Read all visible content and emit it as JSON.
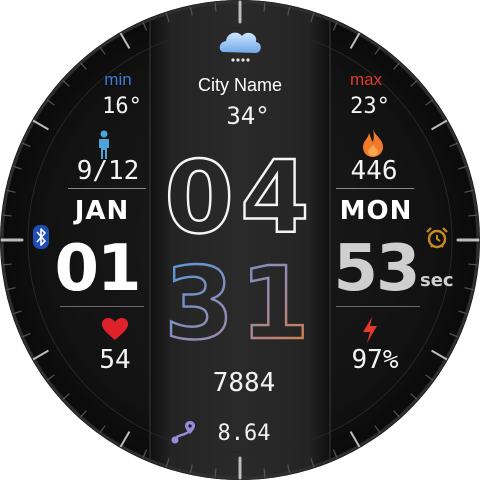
{
  "weather": {
    "icon": "cloud-icon",
    "city": "City Name",
    "temp": "34°",
    "min_label": "min",
    "min_value": "16°",
    "max_label": "max",
    "max_value": "23°"
  },
  "time": {
    "hours": "04",
    "minutes": "31",
    "seconds": "53",
    "seconds_unit": "sec"
  },
  "date": {
    "month": "JAN",
    "day": "01",
    "weekday": "MON"
  },
  "steps": {
    "icon": "person-icon",
    "fraction": "9/12",
    "count": "7884"
  },
  "calories": {
    "icon": "flame-icon",
    "value": "446"
  },
  "heart": {
    "icon": "heart-icon",
    "value": "54"
  },
  "battery": {
    "icon": "bolt-icon",
    "value": "97%"
  },
  "distance": {
    "icon": "route-icon",
    "value": "8.64"
  },
  "status": {
    "bluetooth_icon": "bluetooth-icon",
    "alarm_icon": "alarm-clock-icon"
  },
  "colors": {
    "min": "#3d7bd1",
    "max": "#e03a2a",
    "calories": "#f07a2a",
    "heart": "#e0202a",
    "battery": "#e03a2a",
    "steps_icon": "#4fa3d8",
    "bluetooth": "#1f4fb5",
    "alarm": "#c88a1c",
    "minutes_gradient_start": "#4a9be0",
    "minutes_gradient_end": "#e07a2a"
  }
}
